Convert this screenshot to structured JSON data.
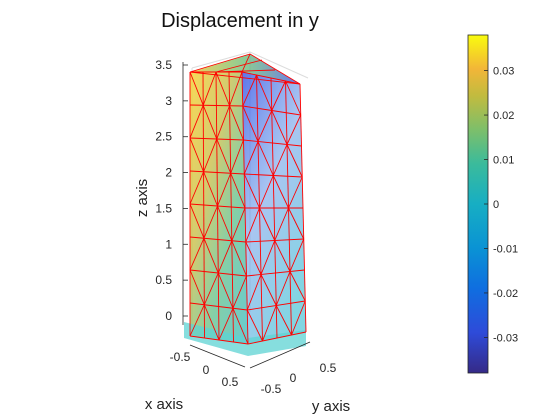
{
  "chart_data": {
    "type": "3d-mesh",
    "title": "Displacement in y",
    "xlabel": "x axis",
    "ylabel": "y axis",
    "zlabel": "z axis",
    "x_ticks": [
      "-0.5",
      "0",
      "0.5"
    ],
    "y_ticks": [
      "-0.5",
      "0",
      "0.5"
    ],
    "z_ticks": [
      "0",
      "0.5",
      "1",
      "1.5",
      "2",
      "2.5",
      "3",
      "3.5"
    ],
    "xlim": [
      -0.5,
      0.5
    ],
    "ylim": [
      -0.5,
      0.5
    ],
    "zlim": [
      0,
      3.5
    ],
    "mesh_edge_color": "#ff0000",
    "colormap": "parula",
    "colorbar": {
      "ticks": [
        "0.03",
        "0.02",
        "0.01",
        "0",
        "-0.01",
        "-0.02",
        "-0.03"
      ],
      "tick_values": [
        0.03,
        0.02,
        0.01,
        0,
        -0.01,
        -0.02,
        -0.03
      ],
      "range": [
        -0.038,
        0.038
      ],
      "location": "right"
    },
    "field": {
      "min": -0.038,
      "max": 0.038,
      "pattern": "displacement in y varies from about -0.035 near the top back edge to about +0.035 near the top front edge, near 0 at the base"
    }
  }
}
